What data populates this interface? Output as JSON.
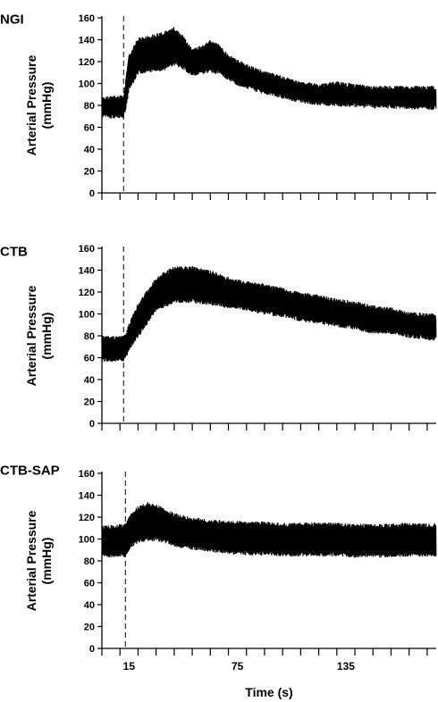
{
  "chart_data": [
    {
      "type": "line",
      "title": "NGI",
      "ylabel": "Arterial Pressure (mmHg)",
      "ylabel_lines": [
        "Arterial Pressure",
        "(mmHg)"
      ],
      "ylim": [
        0,
        160
      ],
      "yticks": [
        0,
        20,
        40,
        60,
        80,
        100,
        120,
        140,
        160
      ],
      "xlim": [
        0,
        185
      ],
      "xticks": [
        0,
        10,
        20,
        30,
        40,
        50,
        60,
        70,
        80,
        90,
        100,
        110,
        120,
        130,
        140,
        150,
        160,
        170,
        180
      ],
      "xtick_labels": [],
      "event_marker_x": 12,
      "series": [
        {
          "x": [
            0,
            12,
            13,
            15,
            20,
            25,
            30,
            35,
            40,
            45,
            50,
            55,
            60,
            65,
            70,
            75,
            80,
            90,
            100,
            110,
            120,
            130,
            140,
            150,
            160,
            170,
            185
          ],
          "y_min": [
            70,
            70,
            75,
            95,
            110,
            112,
            112,
            114,
            118,
            115,
            108,
            110,
            112,
            110,
            105,
            100,
            97,
            92,
            88,
            84,
            82,
            81,
            80,
            79,
            79,
            78,
            78
          ],
          "y_max": [
            86,
            88,
            100,
            125,
            140,
            142,
            144,
            146,
            150,
            142,
            130,
            133,
            138,
            134,
            125,
            120,
            116,
            110,
            105,
            100,
            98,
            100,
            98,
            96,
            96,
            96,
            96
          ]
        }
      ]
    },
    {
      "type": "line",
      "title": "CTB",
      "ylabel": "Arterial Pressure (mmHg)",
      "ylabel_lines": [
        "Arterial Pressure",
        "(mmHg)"
      ],
      "ylim": [
        0,
        160
      ],
      "yticks": [
        0,
        20,
        40,
        60,
        80,
        100,
        120,
        140,
        160
      ],
      "xlim": [
        0,
        185
      ],
      "xticks": [
        0,
        10,
        20,
        30,
        40,
        50,
        60,
        70,
        80,
        90,
        100,
        110,
        120,
        130,
        140,
        150,
        160,
        170,
        180
      ],
      "xtick_labels": [],
      "event_marker_x": 12,
      "series": [
        {
          "x": [
            0,
            12,
            13,
            15,
            20,
            25,
            30,
            40,
            50,
            60,
            70,
            80,
            90,
            100,
            110,
            120,
            130,
            140,
            150,
            160,
            170,
            185
          ],
          "y_min": [
            58,
            58,
            60,
            68,
            80,
            92,
            104,
            112,
            112,
            110,
            107,
            105,
            101,
            99,
            95,
            93,
            90,
            87,
            84,
            83,
            80,
            77
          ],
          "y_max": [
            78,
            78,
            80,
            90,
            108,
            120,
            132,
            142,
            142,
            138,
            132,
            128,
            126,
            122,
            118,
            116,
            112,
            110,
            106,
            104,
            100,
            98
          ]
        }
      ]
    },
    {
      "type": "line",
      "title": "CTB-SAP",
      "ylabel": "Arterial Pressure (mmHg)",
      "ylabel_lines": [
        "Arterial Pressure",
        "(mmHg)"
      ],
      "xlabel": "Time (s)",
      "ylim": [
        0,
        160
      ],
      "yticks": [
        0,
        20,
        40,
        60,
        80,
        100,
        120,
        140,
        160
      ],
      "xlim": [
        0,
        185
      ],
      "xticks": [
        0,
        10,
        20,
        30,
        40,
        50,
        60,
        70,
        80,
        90,
        100,
        110,
        120,
        130,
        140,
        150,
        160,
        170,
        180
      ],
      "xtick_labels": [
        {
          "x": 15,
          "label": "15"
        },
        {
          "x": 75,
          "label": "75"
        },
        {
          "x": 135,
          "label": "135"
        }
      ],
      "event_marker_x": 13,
      "series": [
        {
          "x": [
            0,
            13,
            14,
            16,
            20,
            25,
            30,
            35,
            40,
            45,
            50,
            60,
            70,
            80,
            90,
            100,
            110,
            120,
            130,
            140,
            150,
            160,
            170,
            185
          ],
          "y_min": [
            85,
            85,
            88,
            94,
            98,
            100,
            100,
            98,
            95,
            93,
            92,
            90,
            88,
            87,
            87,
            86,
            86,
            86,
            86,
            85,
            85,
            85,
            86,
            86
          ],
          "y_max": [
            110,
            112,
            115,
            122,
            128,
            132,
            130,
            126,
            122,
            120,
            118,
            116,
            115,
            114,
            114,
            113,
            113,
            113,
            113,
            112,
            112,
            112,
            113,
            112
          ]
        }
      ]
    }
  ]
}
